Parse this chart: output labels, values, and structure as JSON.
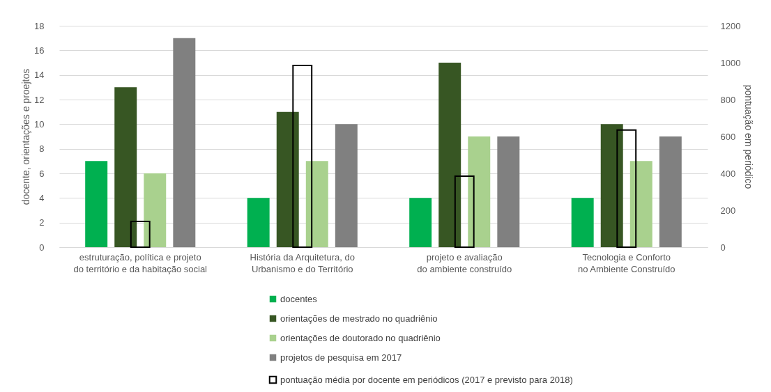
{
  "chart_data": {
    "type": "bar",
    "ylabel": "docente, orientações e proejtos",
    "y2label": "pontuação em periódico",
    "categories": [
      "estruturação, política  e projeto do território e da habitação social",
      "História da Arquitetura, do Urbanismo e do Território",
      "projeto e avaliação do ambiente construído",
      "Tecnologia e Conforto no Ambiente Construído"
    ],
    "series": [
      {
        "name": "docentes",
        "color": "#00b050",
        "values": [
          7,
          4,
          4,
          4
        ]
      },
      {
        "name": "orientações de mestrado no quadriênio",
        "color": "#375623",
        "values": [
          13,
          11,
          15,
          10
        ]
      },
      {
        "name": "orientações de doutorado no quadriênio",
        "color": "#a9d18e",
        "values": [
          6,
          7,
          9,
          7
        ]
      },
      {
        "name": "projetos de pesquisa em 2017",
        "color": "#808080",
        "values": [
          17,
          10,
          9,
          9
        ]
      },
      {
        "name": "pontuação média por docente em periódicos (2017 e previsto para 2018)",
        "color": "#000000",
        "axis": "y2",
        "values": [
          140,
          985,
          385,
          635
        ]
      }
    ],
    "ylim": [
      0,
      18
    ],
    "yticks": [
      0,
      2,
      4,
      6,
      8,
      10,
      12,
      14,
      16,
      18
    ],
    "y2lim": [
      0,
      1200
    ],
    "y2ticks": [
      0,
      200,
      400,
      600,
      800,
      1000,
      1200
    ],
    "grid": "y",
    "legend": "bottom"
  }
}
